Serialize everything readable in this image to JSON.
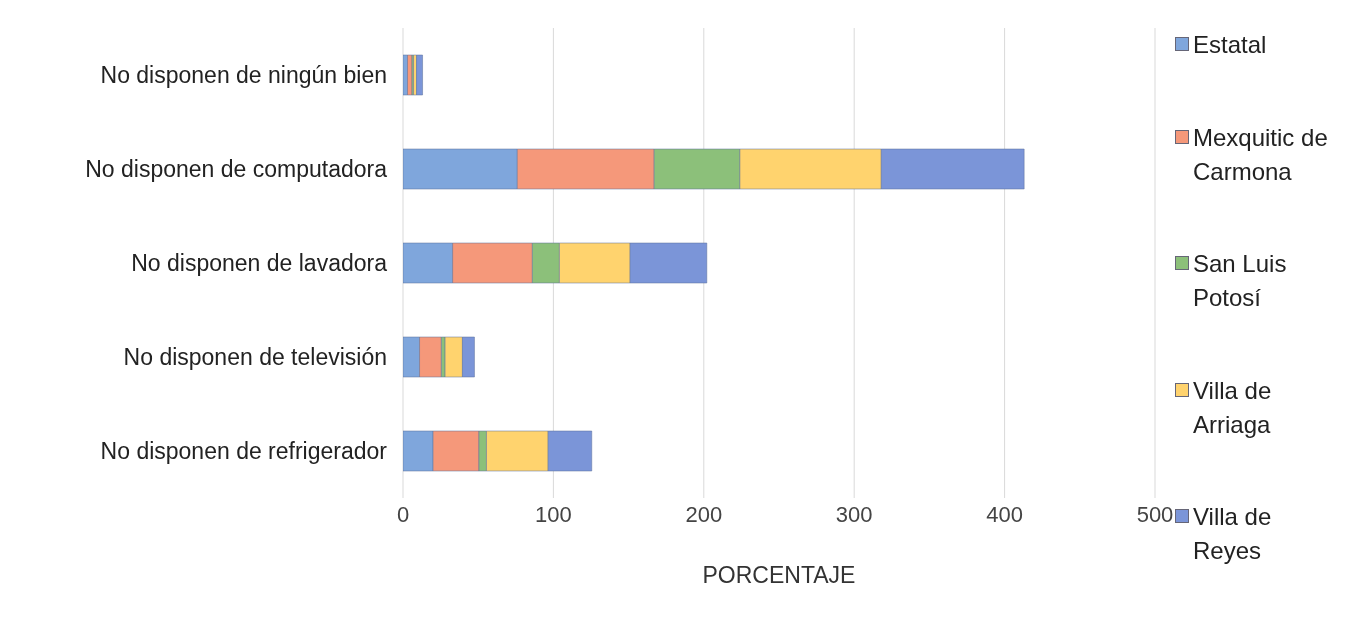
{
  "chart_data": {
    "type": "bar",
    "orientation": "horizontal",
    "stacked": true,
    "xlabel": "PORCENTAJE",
    "categories": [
      "No disponen de ningún bien",
      "No disponen de computadora",
      "No disponen de lavadora",
      "No disponen de televisión",
      "No disponen de refrigerador"
    ],
    "series": [
      {
        "name": "Estatal",
        "color": "#7fa6dc",
        "values": [
          3,
          76,
          33,
          11,
          20
        ]
      },
      {
        "name": "Mexquitic de Carmona",
        "color": "#f5987a",
        "values": [
          3,
          91,
          53,
          14.5,
          30.5
        ]
      },
      {
        "name": "San Luis Potosí",
        "color": "#8cc07a",
        "values": [
          1,
          57,
          18,
          2.5,
          5
        ]
      },
      {
        "name": "Villa de Arriaga",
        "color": "#ffd36e",
        "values": [
          2,
          94,
          47,
          11.5,
          41
        ]
      },
      {
        "name": "Villa de Reyes",
        "color": "#7b95d8",
        "values": [
          4,
          95,
          51,
          8,
          29
        ]
      }
    ],
    "xlim": [
      0,
      500
    ],
    "xticks": [
      0,
      100,
      200,
      300,
      400,
      500
    ],
    "grid": "x",
    "legend": "right"
  }
}
